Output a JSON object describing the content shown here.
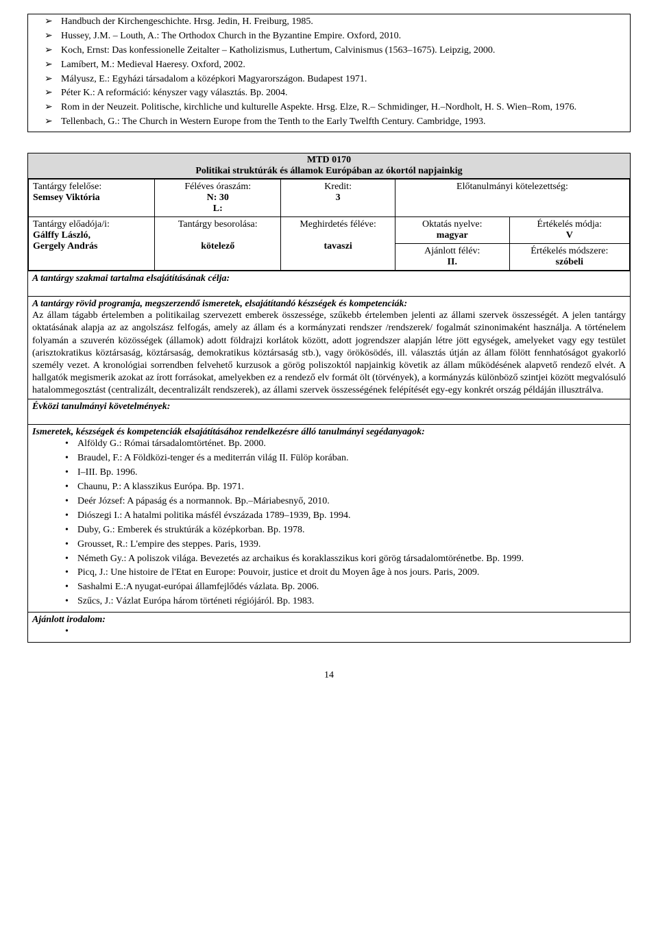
{
  "top_bullets": [
    "Handbuch der Kirchengeschichte. Hrsg. Jedin, H. Freiburg, 1985.",
    "Hussey, J.M. – Louth, A.: The Orthodox Church in the Byzantine Empire. Oxford, 2010.",
    "Koch, Ernst: Das konfessionelle Zeitalter – Katholizismus, Luthertum, Calvinismus (1563–1675). Leipzig, 2000.",
    "Lamíbert, M.: Medieval Haeresy. Oxford, 2002.",
    "Mályusz, E.: Egyházi társadalom a középkori Magyarországon. Budapest 1971.",
    "Péter K.: A reformáció: kényszer vagy választás. Bp. 2004.",
    "Rom in der Neuzeit. Politische, kirchliche und kulturelle Aspekte. Hrsg. Elze, R.– Schmidinger, H.–Nordholt, H. S. Wien–Rom, 1976.",
    "Tellenbach, G.: The Church in Western Europe from the Tenth to the Early Twelfth Century. Cambridge, 1993."
  ],
  "course": {
    "code": "MTD 0170",
    "title": "Politikai struktúrák és államok Európában az ókortól napjainkig",
    "row1": {
      "c1_label": "Tantárgy felelőse:",
      "c1_value": "Semsey Viktória",
      "c2_label": "Féléves óraszám:",
      "c2_value1": "N: 30",
      "c2_value2": "L:",
      "c3_label": "Kredit:",
      "c3_value": "3",
      "c4_label": "Előtanulmányi kötelezettség:"
    },
    "row2": {
      "c1_label": "Tantárgy előadója/i:",
      "c1_value1": "Gálffy László,",
      "c1_value2": "Gergely András",
      "c2_label": "Tantárgy besorolása:",
      "c2_value": "kötelező",
      "c3_label": "Meghirdetés féléve:",
      "c3_value": "tavaszi",
      "c4a_label": "Oktatás nyelve:",
      "c4a_value": "magyar",
      "c4b_label": "Ajánlott félév:",
      "c4b_value": "II.",
      "c5a_label": "Értékelés módja:",
      "c5a_value": "V",
      "c5b_label": "Értékelés módszere:",
      "c5b_value": "szóbeli"
    },
    "goal_title": "A tantárgy szakmai tartalma elsajátításának célja:",
    "prog_title": "A tantárgy rövid programja, megszerzendő ismeretek, elsajátítandó készségek és kompetenciák:",
    "prog_body": "Az állam tágabb értelemben a politikailag szervezett emberek összessége, szűkebb értelemben jelenti az állami szervek összességét. A jelen tantárgy oktatásának alapja az az angolszász felfogás, amely az állam és a kormányzati rendszer /rendszerek/ fogalmát szinonimaként használja. A történelem folyamán a szuverén közösségek (államok) adott földrajzi korlátok között, adott jogrendszer alapján létre jött egységek, amelyeket vagy egy testület (arisztokratikus köztársaság, köztársaság, demokratikus köztársaság stb.), vagy örökösödés, ill. választás útján az állam fölött fennhatóságot gyakorló személy vezet. A kronológiai sorrendben felvehető kurzusok a görög poliszoktól napjainkig követik az állam működésének alapvető rendező elvét. A hallgatók megismerik azokat az írott forrásokat, amelyekben ez a rendező elv formát ölt (törvények), a kormányzás különböző szintjei között megvalósuló hatalommegosztást (centralizált, decentralizált rendszerek), az állami szervek összességének felépítését egy-egy konkrét ország példáján illusztrálva.",
    "midyear_title": "Évközi tanulmányi követelmények:",
    "aids_title": "Ismeretek, készségek és kompetenciák elsajátításához rendelkezésre álló tanulmányi segédanyagok:",
    "aids_list": [
      "Alföldy G.: Római társadalomtörténet. Bp. 2000.",
      "Braudel, F.: A Földközi-tenger és a mediterrán világ II. Fülöp korában.",
      "I–III. Bp. 1996.",
      "Chaunu, P.: A klasszikus Európa. Bp. 1971.",
      "Deér József: A pápaság és a normannok. Bp.–Máriabesnyő, 2010.",
      "Diószegi I.: A hatalmi politika másfél évszázada 1789–1939, Bp. 1994.",
      "Duby, G.: Emberek és struktúrák a középkorban. Bp. 1978.",
      "Grousset, R.: L'empire des steppes. Paris, 1939.",
      "Németh Gy.: A poliszok világa. Bevezetés az archaikus és koraklasszikus kori görög társadalomtörénetbe. Bp. 1999.",
      "Picq, J.: Une histoire de l'Etat en Europe: Pouvoir, justice et droit du Moyen âge à nos jours. Paris, 2009.",
      "Sashalmi E.:A nyugat-európai államfejlődés vázlata. Bp. 2006.",
      "Szűcs, J.: Vázlat Európa három történeti régiójáról. Bp. 1983."
    ],
    "reco_title": "Ajánlott irodalom:"
  },
  "page_number": "14"
}
